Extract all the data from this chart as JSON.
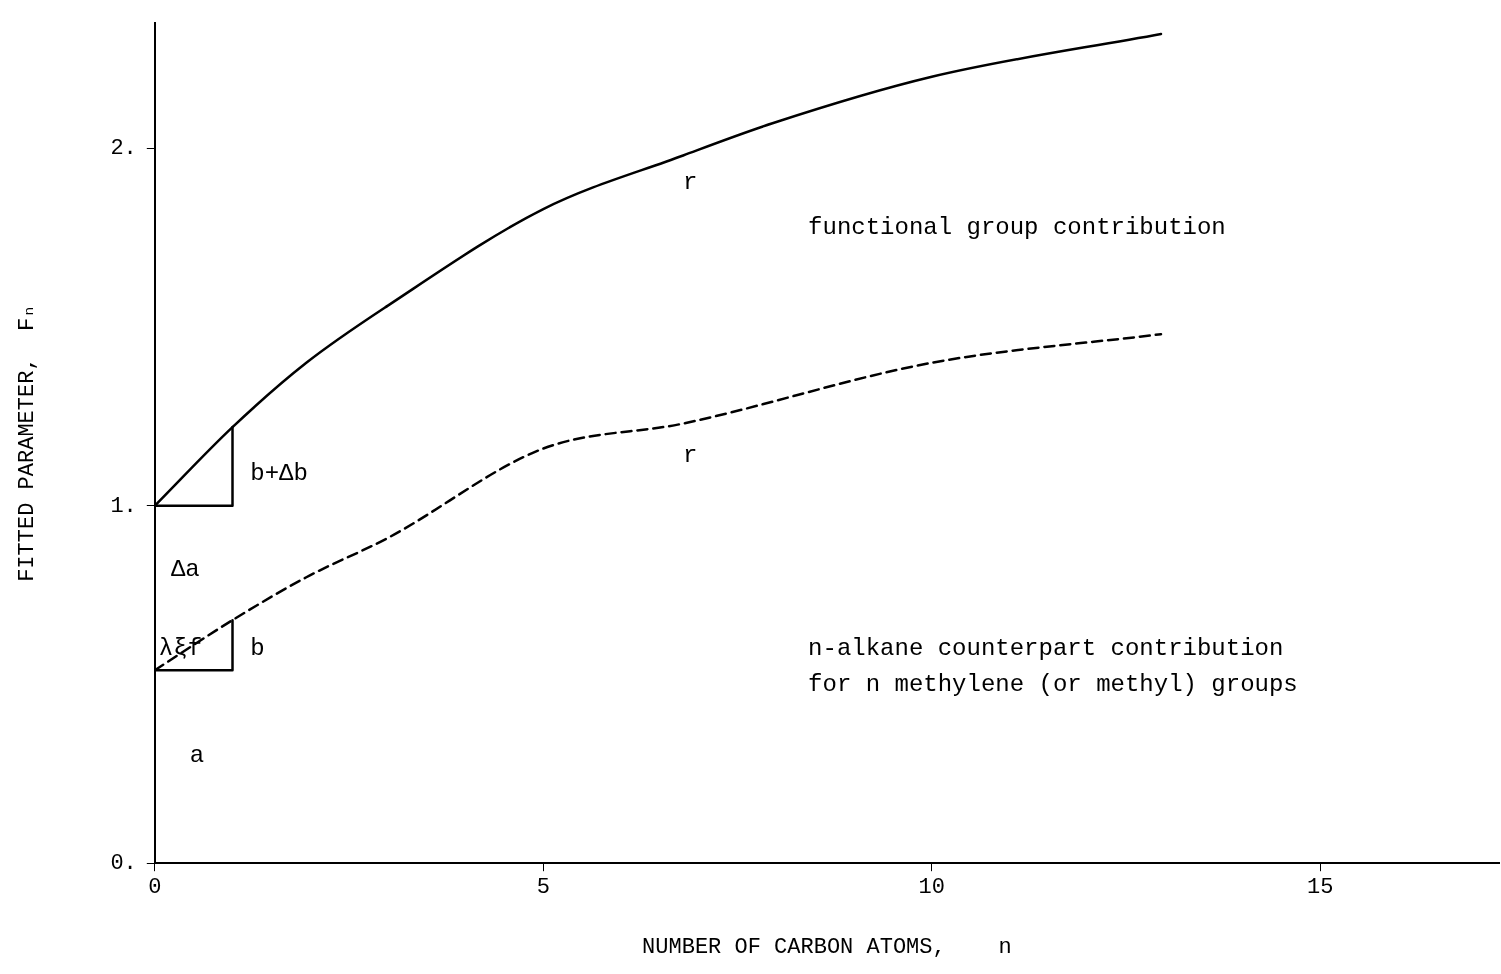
{
  "chart_data": {
    "type": "line",
    "xlabel": "NUMBER OF CARBON ATOMS,    n",
    "ylabel": "FITTED PARAMETER,  Fₙ",
    "xlim": [
      0,
      17.3
    ],
    "xticks": [
      0,
      5,
      10,
      15
    ],
    "ylim": [
      0,
      2.35
    ],
    "yticks": [
      {
        "value": 0,
        "label": "0."
      },
      {
        "value": 1,
        "label": "1."
      },
      {
        "value": 2,
        "label": "2."
      }
    ],
    "grid": false,
    "legend": false,
    "series": [
      {
        "color": "#000000",
        "line_style": "solid",
        "x": [
          0,
          1,
          1.95,
          3,
          5,
          6.8,
          7.95,
          10,
          12.95
        ],
        "values": [
          1,
          1.22,
          1.4,
          1.56,
          1.83,
          1.98,
          2.07,
          2.2,
          2.32
        ]
      },
      {
        "color": "#000000",
        "line_style": "dashed",
        "x": [
          0,
          1,
          1.95,
          3,
          5,
          6.8,
          10,
          12.95
        ],
        "values": [
          0.54,
          0.68,
          0.8,
          0.91,
          1.16,
          1.23,
          1.4,
          1.48
        ]
      },
      {
        "color": "#000000",
        "line_style": "solid",
        "x": [
          0,
          1,
          1
        ],
        "values": [
          1,
          1,
          1.22
        ]
      },
      {
        "color": "#000000",
        "line_style": "solid",
        "x": [
          0,
          1,
          1
        ],
        "values": [
          0.54,
          0.54,
          0.68
        ]
      }
    ],
    "annotations": [
      "r",
      "functional group contribution",
      "r",
      "b+Δb",
      "Δa",
      "λξf",
      "b",
      "n-alkane counterpart contribution",
      "for n methylene (or methyl) groups",
      "a"
    ]
  }
}
